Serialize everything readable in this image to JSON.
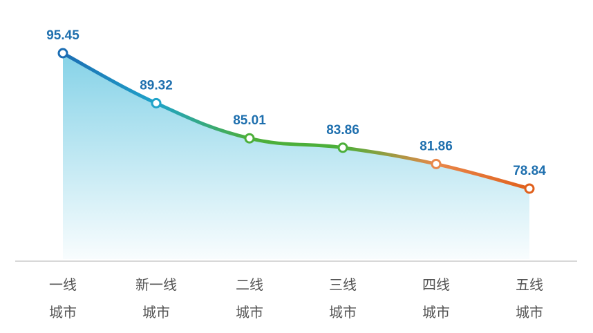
{
  "chart_data": {
    "type": "line",
    "categories": [
      "一线\n城市",
      "新一线\n城市",
      "二线\n城市",
      "三线\n城市",
      "四线\n城市",
      "五线\n城市"
    ],
    "values": [
      95.45,
      89.32,
      85.01,
      83.86,
      81.86,
      78.84
    ],
    "point_colors": [
      "#1b6db3",
      "#1fa3c9",
      "#4caf3a",
      "#4caf3a",
      "#e8874a",
      "#e0601c"
    ],
    "label_color": "#1e6fae"
  }
}
